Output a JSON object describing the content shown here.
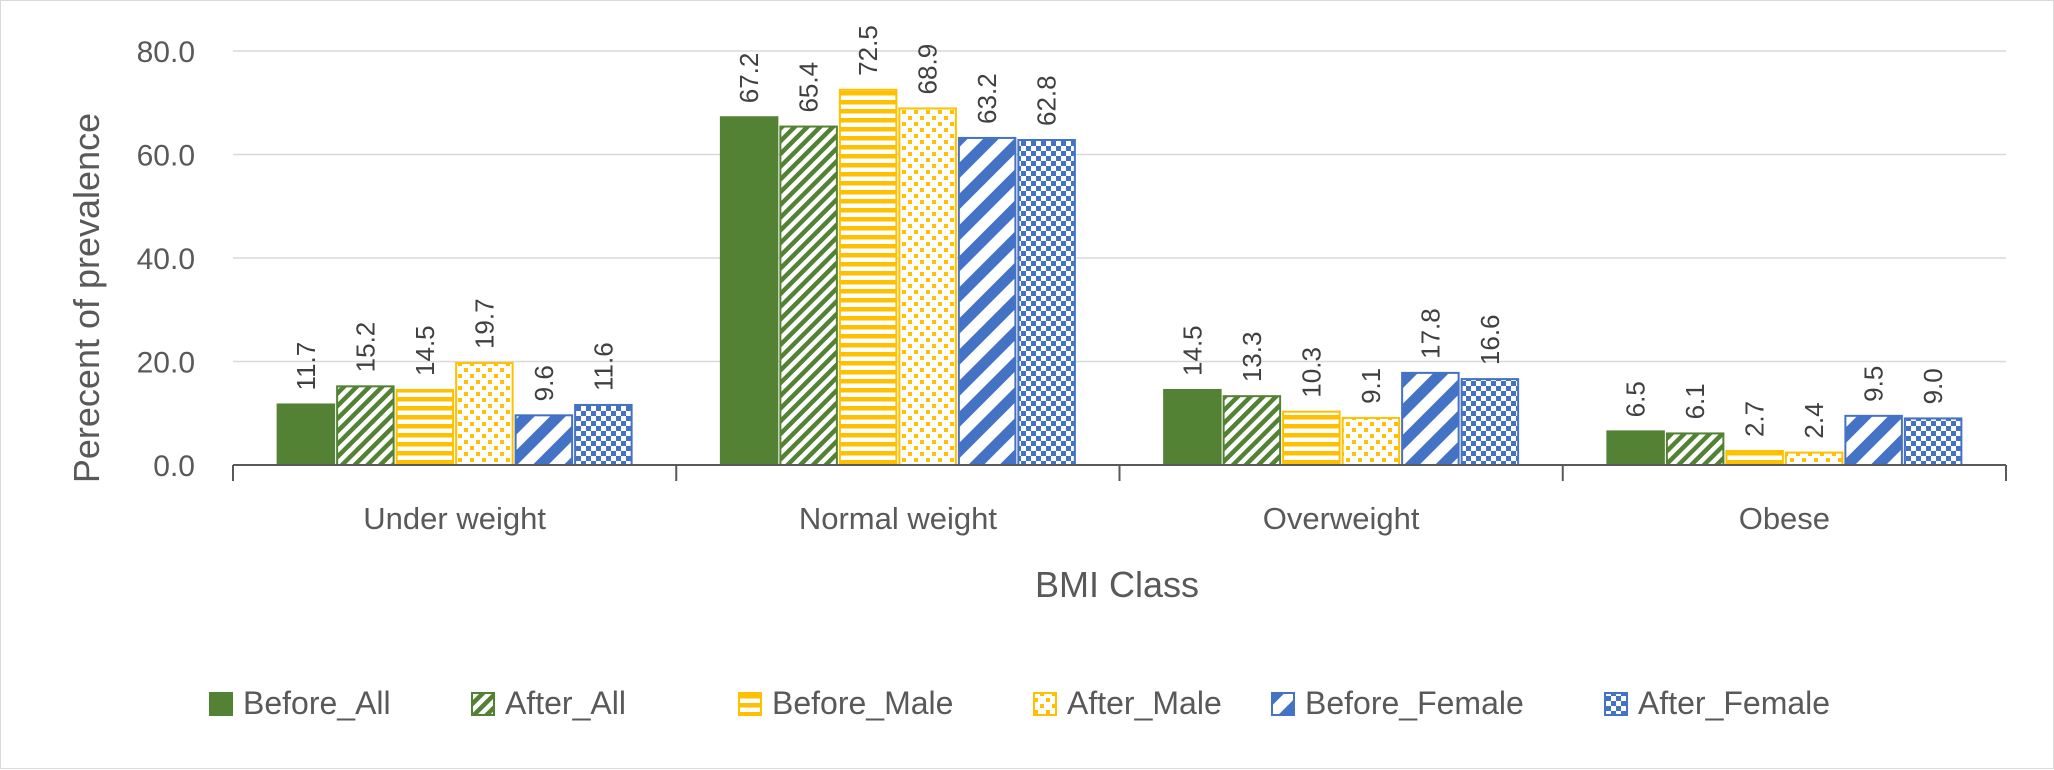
{
  "chart_data": {
    "type": "bar",
    "xlabel": "BMI Class",
    "ylabel": "Perecent of prevalence",
    "ylim": [
      0,
      80
    ],
    "yticks": [
      "0.0",
      "20.0",
      "40.0",
      "60.0",
      "80.0"
    ],
    "grid": true,
    "legend_position": "bottom",
    "categories": [
      "Under weight",
      "Normal weight",
      "Overweight",
      "Obese"
    ],
    "series": [
      {
        "name": "Before_All",
        "values": [
          11.7,
          67.2,
          14.5,
          6.5
        ],
        "labels": [
          "11.7",
          "67.2",
          "14.5",
          "6.5"
        ],
        "color": "#548235",
        "pattern": "solid"
      },
      {
        "name": "After_All",
        "values": [
          15.2,
          65.4,
          13.3,
          6.1
        ],
        "labels": [
          "15.2",
          "65.4",
          "13.3",
          "6.1"
        ],
        "color": "#548235",
        "pattern": "diagonal-stripes"
      },
      {
        "name": "Before_Male",
        "values": [
          14.5,
          72.5,
          10.3,
          2.7
        ],
        "labels": [
          "14.5",
          "72.5",
          "10.3",
          "2.7"
        ],
        "color": "#ffc000",
        "pattern": "horizontal-stripes"
      },
      {
        "name": "After_Male",
        "values": [
          19.7,
          68.9,
          9.1,
          2.4
        ],
        "labels": [
          "19.7",
          "68.9",
          "9.1",
          "2.4"
        ],
        "color": "#ffc000",
        "pattern": "dots"
      },
      {
        "name": "Before_Female",
        "values": [
          9.6,
          63.2,
          17.8,
          9.5
        ],
        "labels": [
          "9.6",
          "63.2",
          "17.8",
          "9.5"
        ],
        "color": "#4472c4",
        "pattern": "wide-diagonal-stripes"
      },
      {
        "name": "After_Female",
        "values": [
          11.6,
          62.8,
          16.6,
          9.0
        ],
        "labels": [
          "11.6",
          "62.8",
          "16.6",
          "9.0"
        ],
        "color": "#4472c4",
        "pattern": "checker"
      }
    ]
  }
}
